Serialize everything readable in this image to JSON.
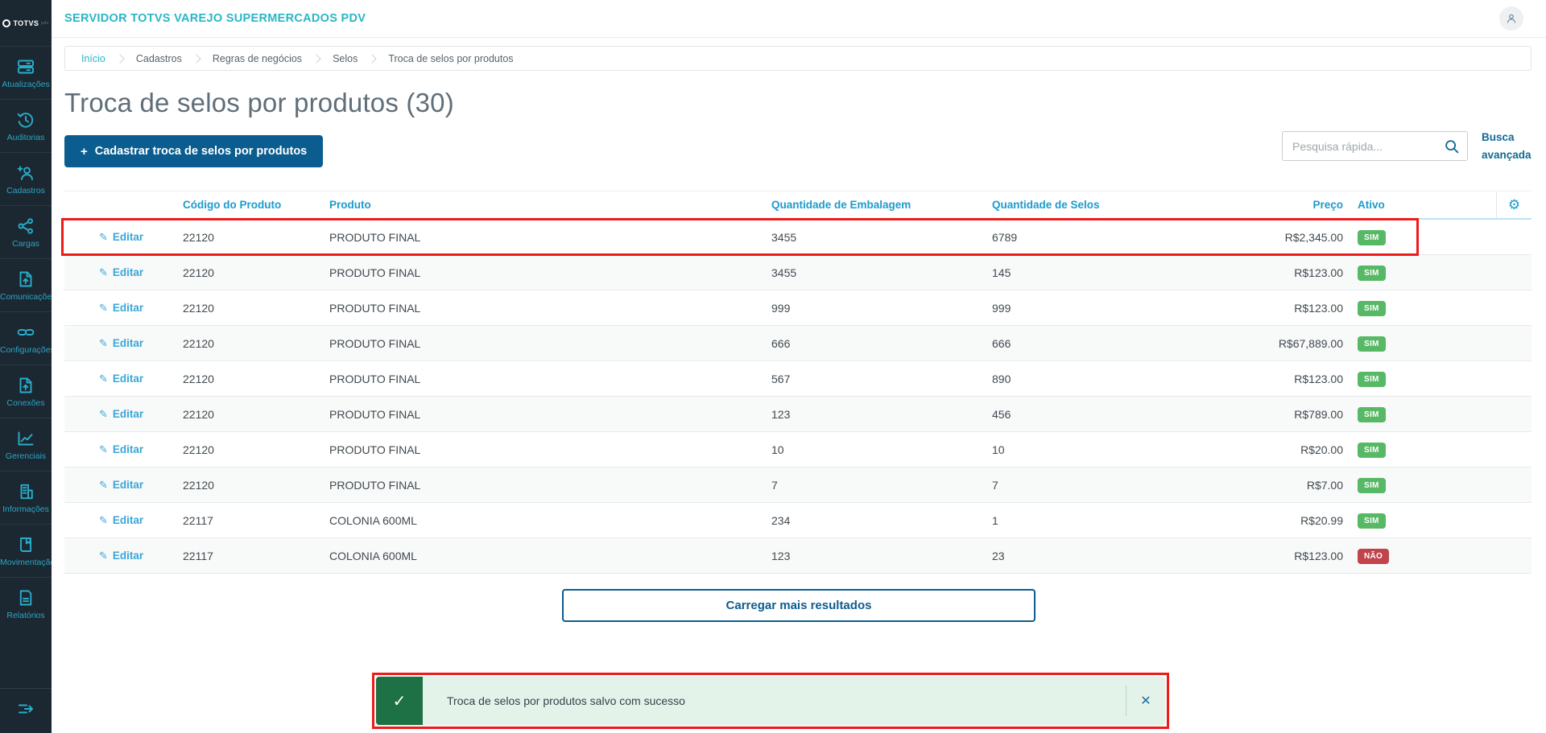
{
  "colors": {
    "accent_teal": "#29b6c5",
    "primary_blue": "#0c5d8f",
    "link_blue": "#3aa6d8",
    "table_header_blue": "#1a9ccd",
    "badge_yes_green": "#57b865",
    "badge_no_red": "#c1434c",
    "toast_dark_green": "#1d7144",
    "toast_light_green": "#e3f3ea",
    "annotation_red": "#ee1b1b",
    "sidebar_bg": "#1b2831"
  },
  "sidebar": {
    "logo_text": "TOTVS",
    "logo_suffix": "pdv",
    "items": [
      {
        "id": "atualizacoes",
        "label": "Atualizações",
        "icon": "updates-icon"
      },
      {
        "id": "auditorias",
        "label": "Auditorias",
        "icon": "history-icon"
      },
      {
        "id": "cadastros",
        "label": "Cadastros",
        "icon": "user-plus-icon"
      },
      {
        "id": "cargas",
        "label": "Cargas",
        "icon": "share-icon"
      },
      {
        "id": "comunicacoes",
        "label": "Comunicações",
        "icon": "file-upload-icon"
      },
      {
        "id": "configuracoes",
        "label": "Configurações",
        "icon": "link-icon"
      },
      {
        "id": "conexoes",
        "label": "Conexões",
        "icon": "file-upload-icon"
      },
      {
        "id": "gerenciais",
        "label": "Gerenciais",
        "icon": "chart-icon"
      },
      {
        "id": "informacoes",
        "label": "Informações",
        "icon": "building-icon"
      },
      {
        "id": "movimentacao",
        "label": "Movimentação",
        "icon": "book-icon"
      },
      {
        "id": "relatorios",
        "label": "Relatórios",
        "icon": "document-icon"
      }
    ]
  },
  "topbar": {
    "title": "SERVIDOR TOTVS VAREJO SUPERMERCADOS PDV"
  },
  "breadcrumb": {
    "items": [
      "Início",
      "Cadastros",
      "Regras de negócios",
      "Selos",
      "Troca de selos por produtos"
    ]
  },
  "page": {
    "title": "Troca de selos por produtos (30)",
    "add_button_plus": "+",
    "add_button_label": "Cadastrar troca de selos por produtos"
  },
  "search": {
    "placeholder": "Pesquisa rápida...",
    "advanced_label": "Busca avançada"
  },
  "table": {
    "headers": [
      "Código do Produto",
      "Produto",
      "Quantidade de Embalagem",
      "Quantidade de Selos",
      "Preço",
      "Ativo"
    ],
    "edit_label": "Editar",
    "gear_icon": "⚙",
    "rows": [
      {
        "code": "22120",
        "product": "PRODUTO FINAL",
        "package_qty": "3455",
        "stamps_qty": "6789",
        "price": "R$2,345.00",
        "active": "SIM",
        "highlighted": true
      },
      {
        "code": "22120",
        "product": "PRODUTO FINAL",
        "package_qty": "3455",
        "stamps_qty": "145",
        "price": "R$123.00",
        "active": "SIM"
      },
      {
        "code": "22120",
        "product": "PRODUTO FINAL",
        "package_qty": "999",
        "stamps_qty": "999",
        "price": "R$123.00",
        "active": "SIM"
      },
      {
        "code": "22120",
        "product": "PRODUTO FINAL",
        "package_qty": "666",
        "stamps_qty": "666",
        "price": "R$67,889.00",
        "active": "SIM"
      },
      {
        "code": "22120",
        "product": "PRODUTO FINAL",
        "package_qty": "567",
        "stamps_qty": "890",
        "price": "R$123.00",
        "active": "SIM"
      },
      {
        "code": "22120",
        "product": "PRODUTO FINAL",
        "package_qty": "123",
        "stamps_qty": "456",
        "price": "R$789.00",
        "active": "SIM"
      },
      {
        "code": "22120",
        "product": "PRODUTO FINAL",
        "package_qty": "10",
        "stamps_qty": "10",
        "price": "R$20.00",
        "active": "SIM"
      },
      {
        "code": "22120",
        "product": "PRODUTO FINAL",
        "package_qty": "7",
        "stamps_qty": "7",
        "price": "R$7.00",
        "active": "SIM"
      },
      {
        "code": "22117",
        "product": "COLONIA 600ML",
        "package_qty": "234",
        "stamps_qty": "1",
        "price": "R$20.99",
        "active": "SIM"
      },
      {
        "code": "22117",
        "product": "COLONIA 600ML",
        "package_qty": "123",
        "stamps_qty": "23",
        "price": "R$123.00",
        "active": "NÃO"
      }
    ]
  },
  "load_more_label": "Carregar mais resultados",
  "toast": {
    "message": "Troca de selos por produtos salvo com sucesso",
    "check_glyph": "✓",
    "close_glyph": "✕"
  }
}
